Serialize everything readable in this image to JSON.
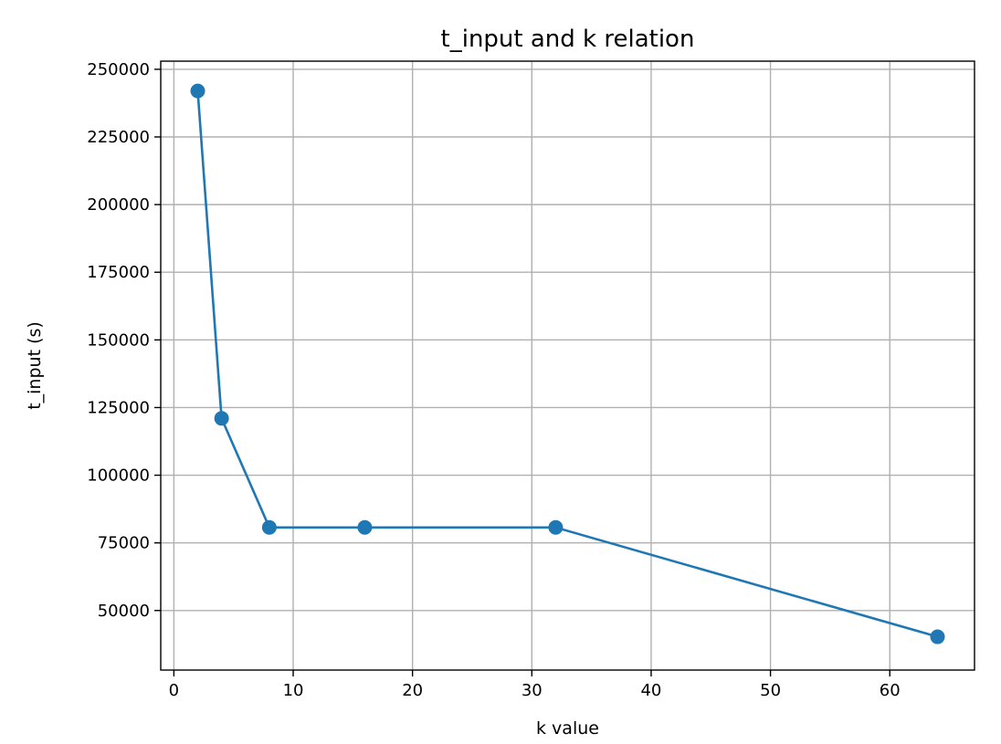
{
  "chart_data": {
    "type": "line",
    "title": "t_input and k relation",
    "xlabel": "k value",
    "ylabel": "t_input (s)",
    "xlim": [
      -1.1,
      67.1
    ],
    "ylim": [
      28000,
      253000
    ],
    "x_ticks": [
      0,
      10,
      20,
      30,
      40,
      50,
      60
    ],
    "y_ticks": [
      50000,
      75000,
      100000,
      125000,
      150000,
      175000,
      200000,
      225000,
      250000
    ],
    "grid": true,
    "series": [
      {
        "color": "#1f77b4",
        "marker": "circle",
        "x": [
          2,
          4,
          8,
          16,
          32,
          64
        ],
        "y": [
          242000,
          121000,
          80700,
          80700,
          80700,
          40300
        ]
      }
    ]
  }
}
